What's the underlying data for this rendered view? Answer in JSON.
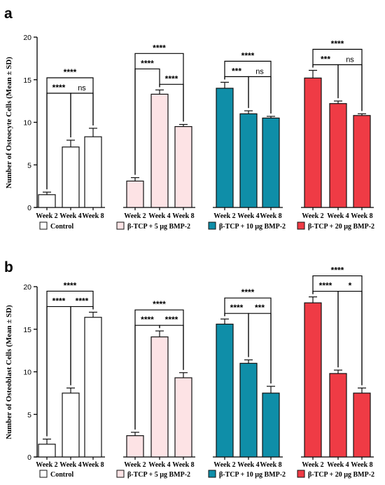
{
  "colors": {
    "Control": "#ffffff",
    "β-TCP + 5 µg BMP-2": "#fde3e5",
    "β-TCP + 10 µg BMP-2": "#0f8ea8",
    "β-TCP + 20 µg BMP-2": "#ef3b45"
  },
  "chart_data": [
    {
      "type": "bar",
      "panel": "a",
      "ylabel": "Number of Osteocyte Cells (Mean ± SD)",
      "ylim": [
        0,
        20
      ],
      "yticks": [
        0,
        5,
        10,
        15,
        20
      ],
      "categories": [
        "Week 2",
        "Week 4",
        "Week 8"
      ],
      "series": [
        {
          "name": "Control",
          "values": [
            1.5,
            7.1,
            8.3
          ],
          "errors": [
            0.3,
            0.8,
            1.0
          ]
        },
        {
          "name": "β-TCP + 5 µg BMP-2",
          "values": [
            3.1,
            13.3,
            9.5
          ],
          "errors": [
            0.4,
            0.5,
            0.25
          ]
        },
        {
          "name": "β-TCP + 10 µg BMP-2",
          "values": [
            14.0,
            11.0,
            10.5
          ],
          "errors": [
            0.7,
            0.35,
            0.2
          ]
        },
        {
          "name": "β-TCP + 20 µg BMP-2",
          "values": [
            15.2,
            12.2,
            10.8
          ],
          "errors": [
            0.9,
            0.3,
            0.2
          ]
        }
      ],
      "significance": [
        {
          "group": 0,
          "from": 0,
          "to": 1,
          "label": "****",
          "level": 1
        },
        {
          "group": 0,
          "from": 1,
          "to": 2,
          "label": "ns",
          "level": 1
        },
        {
          "group": 0,
          "from": 0,
          "to": 2,
          "label": "****",
          "level": 2
        },
        {
          "group": 1,
          "from": 1,
          "to": 2,
          "label": "****",
          "level": 1
        },
        {
          "group": 1,
          "from": 0,
          "to": 1,
          "label": "****",
          "level": 2
        },
        {
          "group": 1,
          "from": 0,
          "to": 2,
          "label": "****",
          "level": 3
        },
        {
          "group": 2,
          "from": 0,
          "to": 1,
          "label": "***",
          "level": 1
        },
        {
          "group": 2,
          "from": 1,
          "to": 2,
          "label": "ns",
          "level": 1
        },
        {
          "group": 2,
          "from": 0,
          "to": 2,
          "label": "****",
          "level": 2
        },
        {
          "group": 3,
          "from": 0,
          "to": 1,
          "label": "***",
          "level": 1
        },
        {
          "group": 3,
          "from": 1,
          "to": 2,
          "label": "ns",
          "level": 1
        },
        {
          "group": 3,
          "from": 0,
          "to": 2,
          "label": "****",
          "level": 2
        }
      ]
    },
    {
      "type": "bar",
      "panel": "b",
      "ylabel": "Number of Osteoblast Cells (Mean ± SD)",
      "ylim": [
        0,
        20
      ],
      "yticks": [
        0,
        5,
        10,
        15,
        20
      ],
      "categories": [
        "Week 2",
        "Week 4",
        "Week 8"
      ],
      "series": [
        {
          "name": "Control",
          "values": [
            1.5,
            7.5,
            16.4
          ],
          "errors": [
            0.6,
            0.6,
            0.6
          ]
        },
        {
          "name": "β-TCP + 5 µg BMP-2",
          "values": [
            2.5,
            14.1,
            9.3
          ],
          "errors": [
            0.4,
            0.7,
            0.6
          ]
        },
        {
          "name": "β-TCP + 10 µg BMP-2",
          "values": [
            15.6,
            11.0,
            7.5
          ],
          "errors": [
            0.6,
            0.4,
            0.8
          ]
        },
        {
          "name": "β-TCP + 20 µg BMP-2",
          "values": [
            18.1,
            9.8,
            7.5
          ],
          "errors": [
            0.7,
            0.4,
            0.6
          ]
        }
      ],
      "significance": [
        {
          "group": 0,
          "from": 0,
          "to": 1,
          "label": "****",
          "level": 1
        },
        {
          "group": 0,
          "from": 1,
          "to": 2,
          "label": "****",
          "level": 1
        },
        {
          "group": 0,
          "from": 0,
          "to": 2,
          "label": "****",
          "level": 2
        },
        {
          "group": 1,
          "from": 0,
          "to": 1,
          "label": "****",
          "level": 1
        },
        {
          "group": 1,
          "from": 1,
          "to": 2,
          "label": "****",
          "level": 1
        },
        {
          "group": 1,
          "from": 0,
          "to": 2,
          "label": "****",
          "level": 2
        },
        {
          "group": 2,
          "from": 0,
          "to": 1,
          "label": "****",
          "level": 1
        },
        {
          "group": 2,
          "from": 1,
          "to": 2,
          "label": "***",
          "level": 1
        },
        {
          "group": 2,
          "from": 0,
          "to": 2,
          "label": "****",
          "level": 2
        },
        {
          "group": 3,
          "from": 0,
          "to": 1,
          "label": "****",
          "level": 1
        },
        {
          "group": 3,
          "from": 1,
          "to": 2,
          "label": "*",
          "level": 1
        },
        {
          "group": 3,
          "from": 0,
          "to": 2,
          "label": "****",
          "level": 2
        }
      ]
    }
  ]
}
